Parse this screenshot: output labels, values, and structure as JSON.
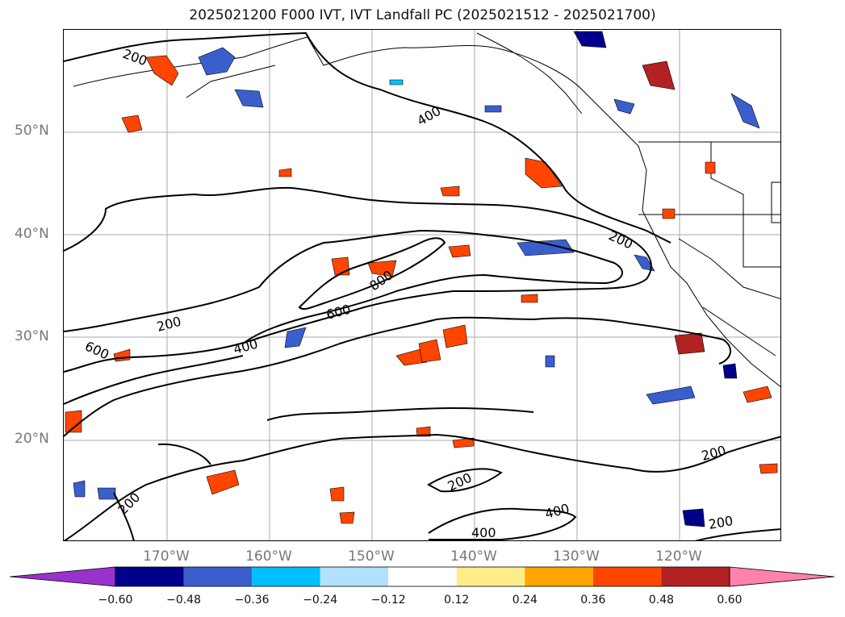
{
  "title": "2025021200 F000 IVT, IVT Landfall PC (2025021512 - 2025021700)",
  "lat_labels": [
    "50°N",
    "40°N",
    "30°N",
    "20°N"
  ],
  "lon_labels": [
    "170°W",
    "160°W",
    "150°W",
    "140°W",
    "130°W",
    "120°W"
  ],
  "contour_labels": {
    "c200a": "200",
    "c400a": "400",
    "c200b": "200",
    "c800": "800",
    "c600a": "600",
    "c200c": "200",
    "c600b": "600",
    "c400b": "400",
    "c200d": "200",
    "c200e": "200",
    "c200f": "200",
    "c400c": "400",
    "c400d": "400"
  },
  "colorbar": {
    "ticks": [
      "−0.60",
      "−0.48",
      "−0.36",
      "−0.24",
      "−0.12",
      "0.12",
      "0.24",
      "0.36",
      "0.48",
      "0.60"
    ],
    "colors": [
      "#9932cc",
      "#00008b",
      "#3a5fcd",
      "#00bfff",
      "#b0e2ff",
      "#ffffff",
      "#ffec8b",
      "#ffa500",
      "#ff4500",
      "#b22222",
      "#ff82ab"
    ]
  },
  "map": {
    "extent_lon": [
      -180,
      -110
    ],
    "extent_lat": [
      10,
      60
    ],
    "gridlines": true,
    "contour_levels": [
      200,
      400,
      600,
      800
    ],
    "fill_levels": [
      -0.6,
      -0.48,
      -0.36,
      -0.24,
      -0.12,
      0.12,
      0.24,
      0.36,
      0.48,
      0.6
    ]
  }
}
